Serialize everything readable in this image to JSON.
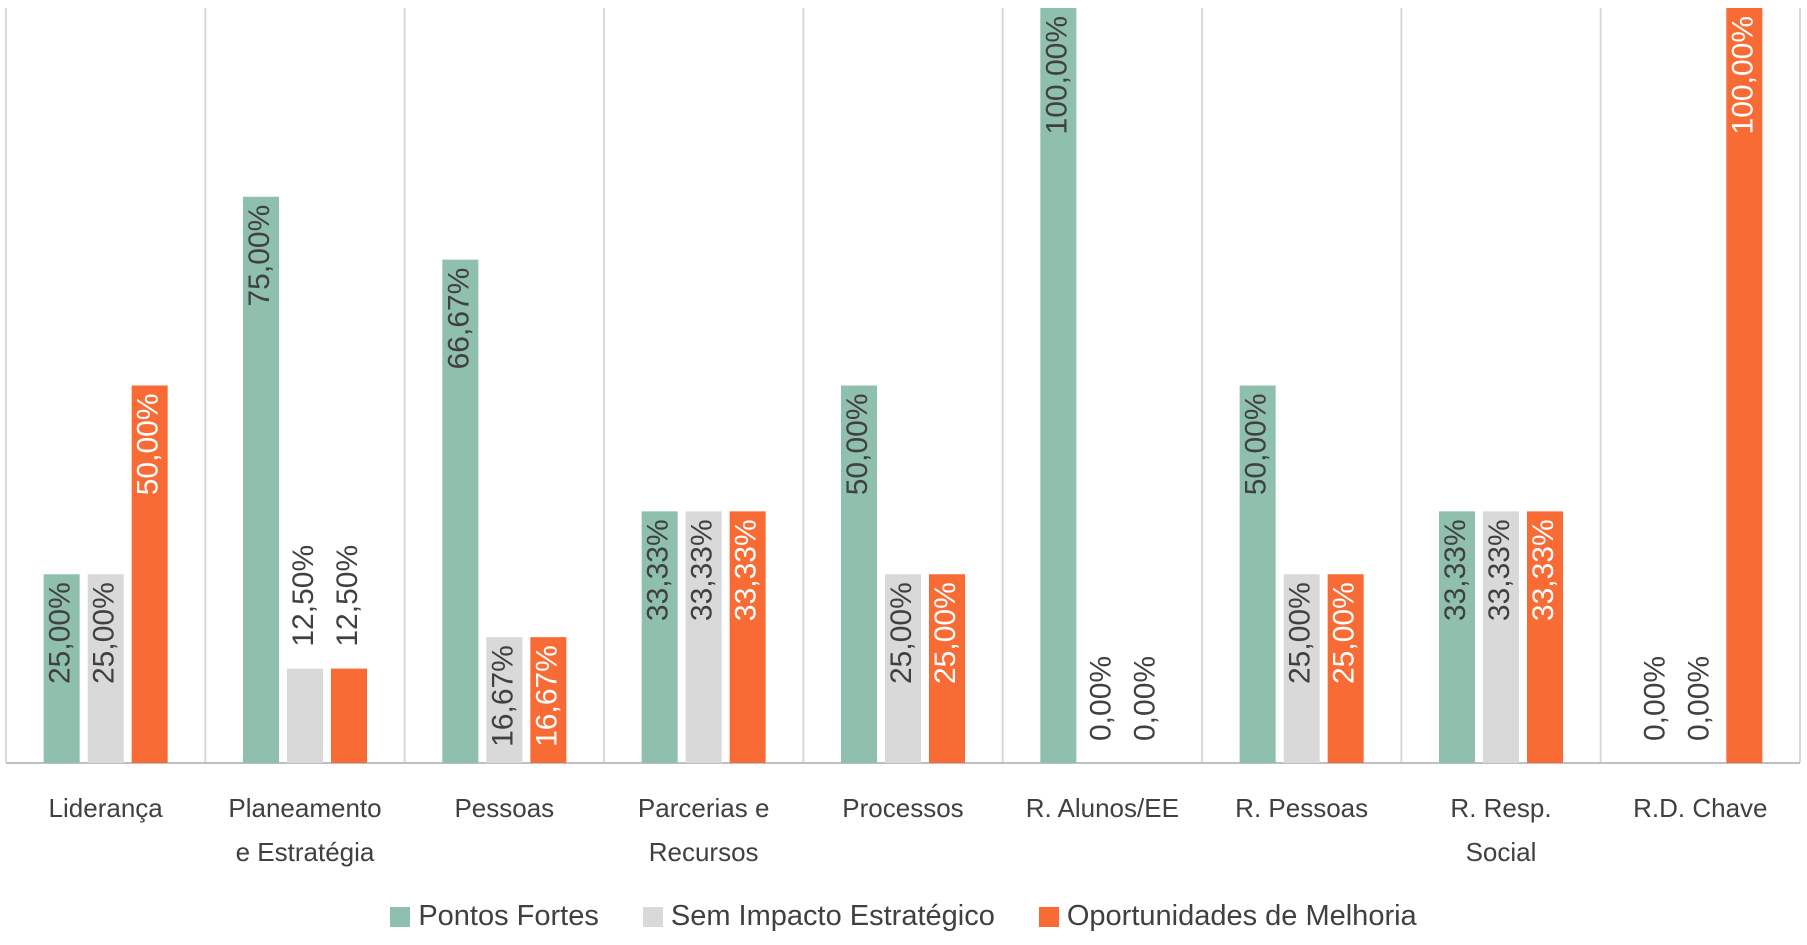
{
  "chart_data": {
    "type": "bar",
    "categories": [
      "Liderança",
      "Planeamento e Estratégia",
      "Pessoas",
      "Parcerias e Recursos",
      "Processos",
      "R. Alunos/EE",
      "R. Pessoas",
      "R. Resp. Social",
      "R.D. Chave"
    ],
    "series": [
      {
        "name": "Pontos Fortes",
        "color": "#8fbfad",
        "values": [
          25,
          75,
          66.67,
          33.33,
          50,
          100,
          50,
          33.33,
          0
        ],
        "value_labels": [
          "25,00%",
          "75,00%",
          "66,67%",
          "33,33%",
          "50,00%",
          "100,00%",
          "50,00%",
          "33,33%",
          "0,00%"
        ]
      },
      {
        "name": "Sem Impacto Estratégico",
        "color": "#d9d9d9",
        "values": [
          25,
          12.5,
          16.67,
          33.33,
          25,
          0,
          25,
          33.33,
          0
        ],
        "value_labels": [
          "25,00%",
          "12,50%",
          "16,67%",
          "33,33%",
          "25,00%",
          "0,00%",
          "25,00%",
          "33,33%",
          "0,00%"
        ]
      },
      {
        "name": "Oportunidades de Melhoria",
        "color": "#f96b35",
        "values": [
          50,
          12.5,
          16.67,
          33.33,
          25,
          0,
          25,
          33.33,
          100
        ],
        "value_labels": [
          "50,00%",
          "12,50%",
          "16,67%",
          "33,33%",
          "25,00%",
          "0,00%",
          "25,00%",
          "33,33%",
          "100,00%"
        ]
      }
    ],
    "ylim": [
      0,
      100
    ]
  }
}
